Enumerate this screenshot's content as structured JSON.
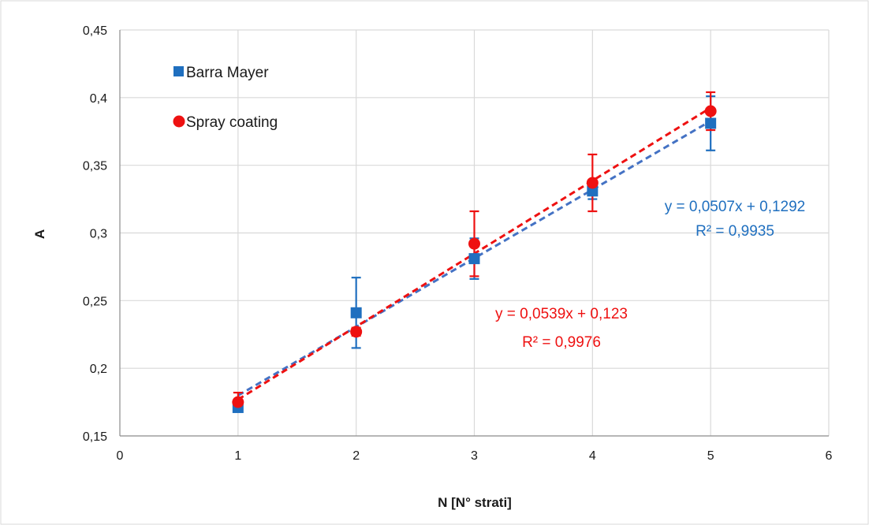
{
  "chart_data": {
    "type": "scatter",
    "title": "",
    "xlabel": "N [N° strati]",
    "ylabel": "A",
    "xlim": [
      0,
      6
    ],
    "ylim": [
      0.15,
      0.45
    ],
    "x_ticks": [
      0,
      1,
      2,
      3,
      4,
      5,
      6
    ],
    "y_ticks": [
      0.15,
      0.2,
      0.25,
      0.3,
      0.35,
      0.4,
      0.45
    ],
    "x_tick_labels": [
      "0",
      "1",
      "2",
      "3",
      "4",
      "5",
      "6"
    ],
    "y_tick_labels": [
      "0,15",
      "0,2",
      "0,25",
      "0,3",
      "0,35",
      "0,4",
      "0,45"
    ],
    "grid": "vertical and horizontal",
    "legend_position": "top-left",
    "series": [
      {
        "name": "Barra Mayer",
        "color": "#1f6fbf",
        "marker": "square",
        "x": [
          1,
          2,
          3,
          4,
          5
        ],
        "y": [
          0.171,
          0.241,
          0.281,
          0.331,
          0.381
        ],
        "error": [
          0.002,
          0.026,
          0.015,
          0.006,
          0.02
        ],
        "trendline": {
          "slope": 0.0507,
          "intercept": 0.1292,
          "equation": "y = 0,0507x + 0,1292",
          "r2": "R² = 0,9935"
        }
      },
      {
        "name": "Spray coating",
        "color": "#ee1111",
        "marker": "circle",
        "x": [
          1,
          2,
          3,
          4,
          5
        ],
        "y": [
          0.175,
          0.227,
          0.292,
          0.337,
          0.39
        ],
        "error": [
          0.007,
          0.003,
          0.024,
          0.021,
          0.014
        ],
        "trendline": {
          "slope": 0.0539,
          "intercept": 0.123,
          "equation": "y = 0,0539x + 0,123",
          "r2": "R² = 0,9976"
        }
      }
    ]
  }
}
